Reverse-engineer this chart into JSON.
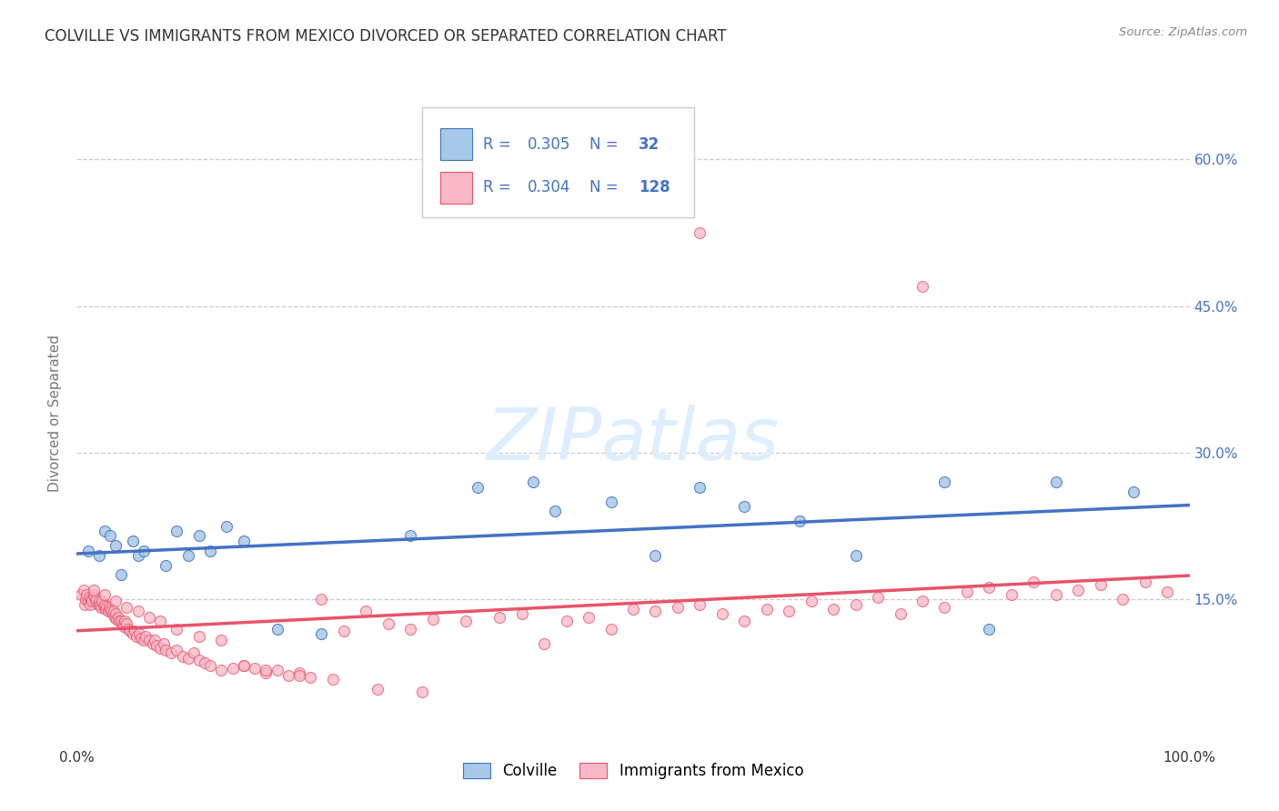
{
  "title": "COLVILLE VS IMMIGRANTS FROM MEXICO DIVORCED OR SEPARATED CORRELATION CHART",
  "source": "Source: ZipAtlas.com",
  "ylabel": "Divorced or Separated",
  "legend_label1": "Colville",
  "legend_label2": "Immigrants from Mexico",
  "r1": 0.305,
  "n1": 32,
  "r2": 0.304,
  "n2": 128,
  "ytick_vals": [
    0.15,
    0.3,
    0.45,
    0.6
  ],
  "ytick_labels": [
    "15.0%",
    "30.0%",
    "45.0%",
    "60.0%"
  ],
  "color_blue_fill": "#a8c8e8",
  "color_pink_fill": "#f8b8c8",
  "color_blue_edge": "#4472c4",
  "color_pink_edge": "#e8536a",
  "color_blue_line": "#4472c4",
  "color_pink_line": "#e8536a",
  "watermark_color": "#ddeeff",
  "ylim": [
    0.0,
    0.68
  ],
  "xlim": [
    0.0,
    1.0
  ],
  "blue_x": [
    0.01,
    0.02,
    0.025,
    0.03,
    0.035,
    0.04,
    0.05,
    0.055,
    0.06,
    0.08,
    0.09,
    0.1,
    0.11,
    0.12,
    0.135,
    0.15,
    0.18,
    0.22,
    0.3,
    0.36,
    0.41,
    0.43,
    0.48,
    0.52,
    0.56,
    0.6,
    0.65,
    0.7,
    0.78,
    0.82,
    0.88,
    0.95
  ],
  "blue_y": [
    0.2,
    0.195,
    0.22,
    0.215,
    0.205,
    0.175,
    0.21,
    0.195,
    0.2,
    0.185,
    0.22,
    0.195,
    0.215,
    0.2,
    0.225,
    0.21,
    0.12,
    0.115,
    0.215,
    0.265,
    0.27,
    0.24,
    0.25,
    0.195,
    0.265,
    0.245,
    0.23,
    0.195,
    0.27,
    0.12,
    0.27,
    0.26
  ],
  "pink_x": [
    0.004,
    0.006,
    0.007,
    0.008,
    0.009,
    0.01,
    0.011,
    0.012,
    0.013,
    0.014,
    0.015,
    0.016,
    0.017,
    0.018,
    0.019,
    0.02,
    0.021,
    0.022,
    0.023,
    0.024,
    0.025,
    0.026,
    0.027,
    0.028,
    0.029,
    0.03,
    0.031,
    0.032,
    0.033,
    0.034,
    0.035,
    0.036,
    0.037,
    0.038,
    0.04,
    0.041,
    0.042,
    0.043,
    0.045,
    0.046,
    0.048,
    0.05,
    0.052,
    0.054,
    0.056,
    0.058,
    0.06,
    0.062,
    0.065,
    0.068,
    0.07,
    0.072,
    0.075,
    0.078,
    0.08,
    0.085,
    0.09,
    0.095,
    0.1,
    0.105,
    0.11,
    0.115,
    0.12,
    0.13,
    0.14,
    0.15,
    0.16,
    0.17,
    0.18,
    0.19,
    0.2,
    0.21,
    0.22,
    0.24,
    0.26,
    0.28,
    0.3,
    0.32,
    0.35,
    0.38,
    0.4,
    0.42,
    0.44,
    0.46,
    0.48,
    0.5,
    0.52,
    0.54,
    0.56,
    0.58,
    0.6,
    0.62,
    0.64,
    0.66,
    0.68,
    0.7,
    0.72,
    0.74,
    0.76,
    0.78,
    0.8,
    0.82,
    0.84,
    0.86,
    0.88,
    0.9,
    0.92,
    0.94,
    0.96,
    0.98,
    0.015,
    0.025,
    0.035,
    0.045,
    0.055,
    0.065,
    0.075,
    0.09,
    0.11,
    0.13,
    0.15,
    0.17,
    0.2,
    0.23,
    0.27,
    0.31,
    0.56,
    0.76
  ],
  "pink_y": [
    0.155,
    0.16,
    0.145,
    0.15,
    0.155,
    0.148,
    0.152,
    0.145,
    0.15,
    0.148,
    0.155,
    0.152,
    0.148,
    0.15,
    0.145,
    0.148,
    0.145,
    0.142,
    0.148,
    0.143,
    0.145,
    0.14,
    0.143,
    0.138,
    0.142,
    0.14,
    0.138,
    0.135,
    0.138,
    0.132,
    0.135,
    0.13,
    0.132,
    0.128,
    0.128,
    0.125,
    0.122,
    0.128,
    0.125,
    0.12,
    0.118,
    0.115,
    0.118,
    0.112,
    0.115,
    0.11,
    0.108,
    0.112,
    0.108,
    0.105,
    0.108,
    0.103,
    0.1,
    0.105,
    0.098,
    0.095,
    0.098,
    0.092,
    0.09,
    0.095,
    0.088,
    0.085,
    0.082,
    0.078,
    0.08,
    0.082,
    0.08,
    0.075,
    0.078,
    0.072,
    0.075,
    0.07,
    0.15,
    0.118,
    0.138,
    0.125,
    0.12,
    0.13,
    0.128,
    0.132,
    0.135,
    0.105,
    0.128,
    0.132,
    0.12,
    0.14,
    0.138,
    0.142,
    0.145,
    0.135,
    0.128,
    0.14,
    0.138,
    0.148,
    0.14,
    0.145,
    0.152,
    0.135,
    0.148,
    0.142,
    0.158,
    0.162,
    0.155,
    0.168,
    0.155,
    0.16,
    0.165,
    0.15,
    0.168,
    0.158,
    0.16,
    0.155,
    0.148,
    0.142,
    0.138,
    0.132,
    0.128,
    0.12,
    0.112,
    0.108,
    0.082,
    0.078,
    0.072,
    0.068,
    0.058,
    0.055,
    0.525,
    0.47
  ]
}
